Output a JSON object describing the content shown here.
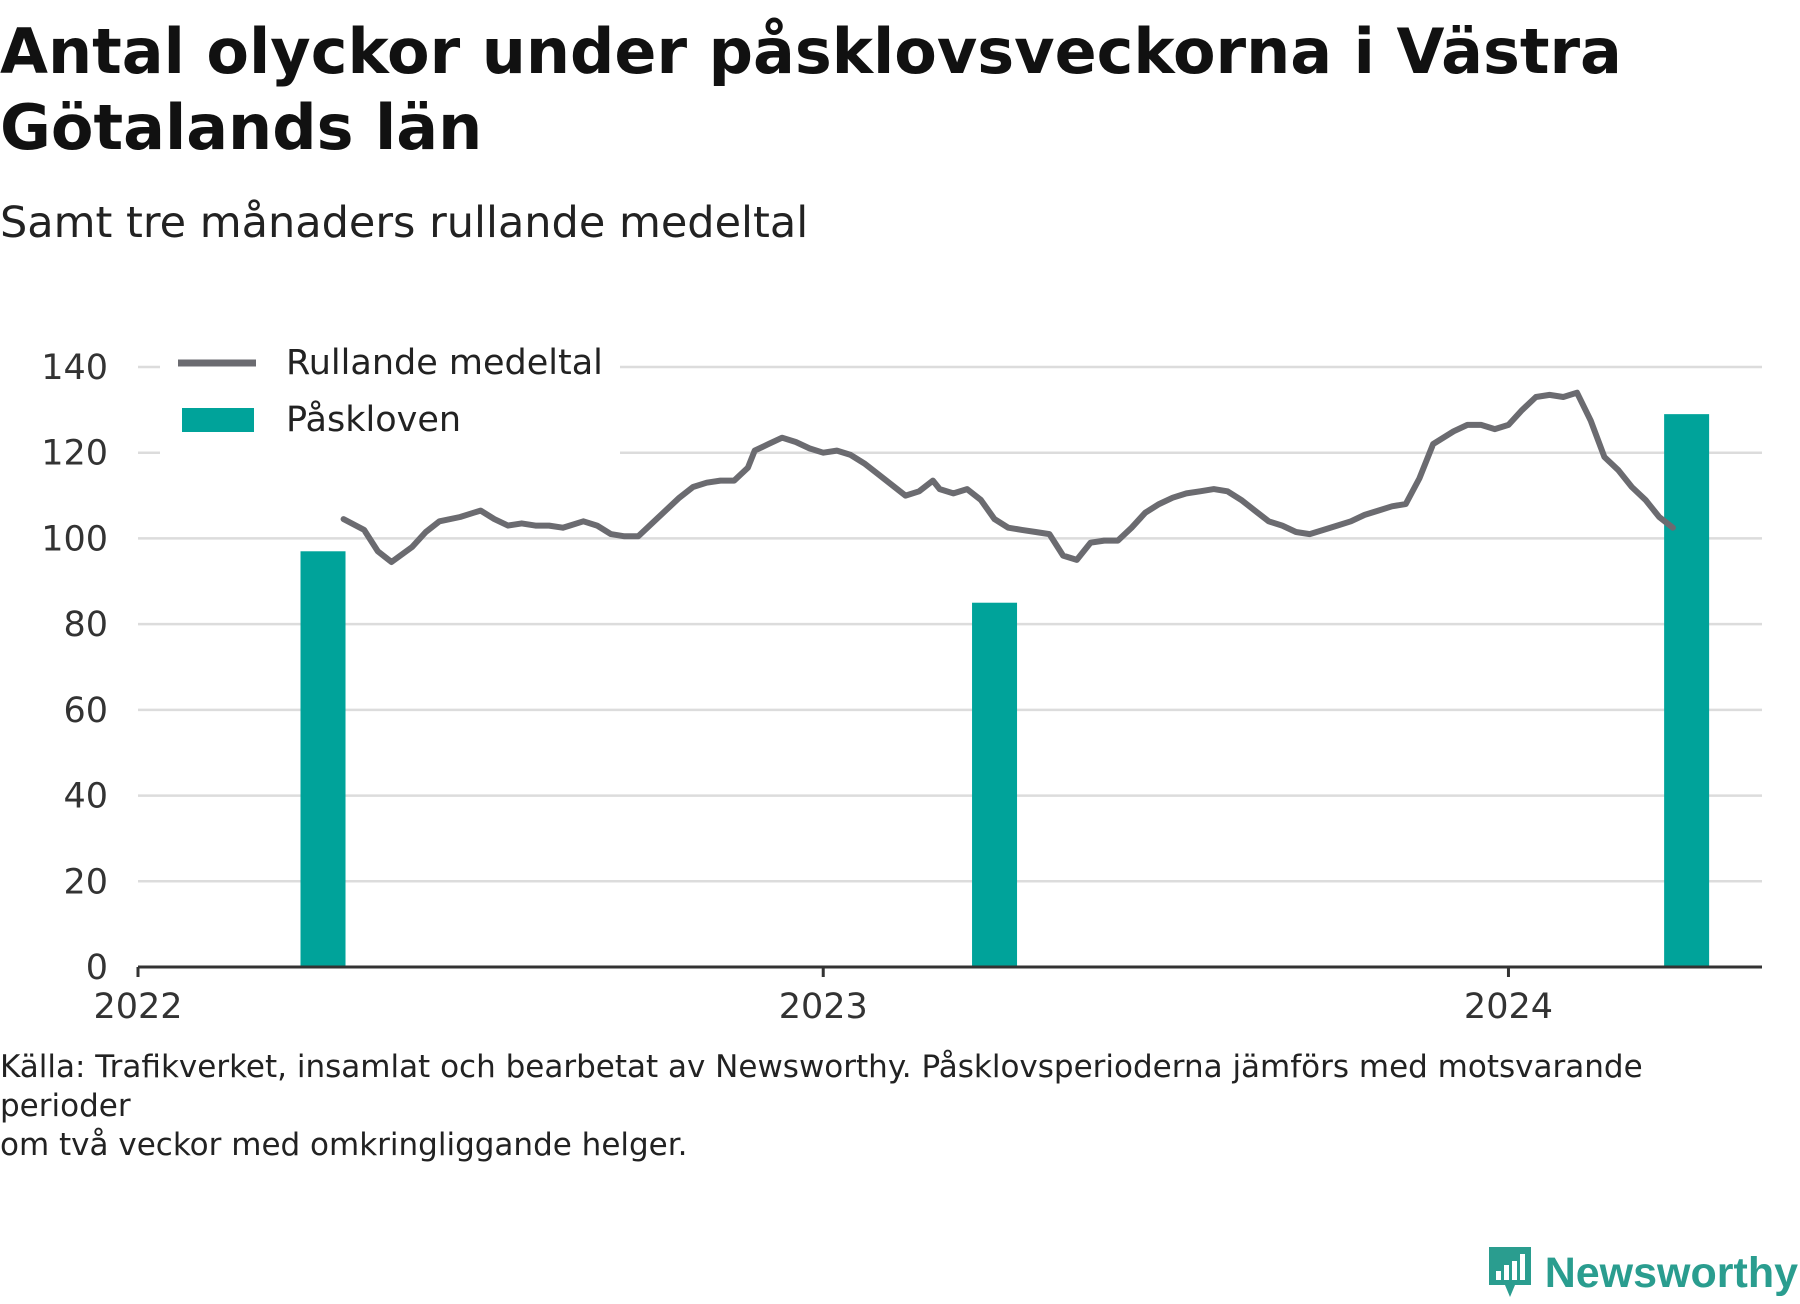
{
  "title": "Antal olyckor under påsklovsveckorna i Västra Götalands län",
  "subtitle": "Samt tre månaders rullande medeltal",
  "footnote_line1": "Källa: Trafikverket, insamlat och bearbetat av Newsworthy. Påsklovsperioderna jämförs med motsvarande perioder",
  "footnote_line2": "om två veckor med omkringliggande helger.",
  "brand": "Newsworthy",
  "colors": {
    "line": "#6b6b70",
    "bar": "#00a39a",
    "grid": "#dcdcdc",
    "axis": "#333333",
    "brand": "#2a9d8f"
  },
  "chart_data": {
    "type": "bar+line",
    "ylim": [
      0,
      140
    ],
    "yticks": [
      0,
      20,
      40,
      60,
      80,
      100,
      120,
      140
    ],
    "xlim": [
      2022.0,
      2024.37
    ],
    "xticks": [
      {
        "value": 2022,
        "label": "2022"
      },
      {
        "value": 2023,
        "label": "2023"
      },
      {
        "value": 2024,
        "label": "2024"
      }
    ],
    "grid": true,
    "legend": {
      "position": "top-left",
      "entries": [
        {
          "label": "Rullande medeltal",
          "kind": "line"
        },
        {
          "label": "Påskloven",
          "kind": "bar"
        }
      ]
    },
    "bars": {
      "name": "Påskloven",
      "points": [
        {
          "x": 2022.27,
          "y": 97
        },
        {
          "x": 2023.25,
          "y": 85
        },
        {
          "x": 2024.26,
          "y": 129
        }
      ]
    },
    "line": {
      "name": "Rullande medeltal",
      "points": [
        [
          2022.3,
          104.5
        ],
        [
          2022.33,
          102
        ],
        [
          2022.35,
          97
        ],
        [
          2022.37,
          94.5
        ],
        [
          2022.4,
          98
        ],
        [
          2022.42,
          101.5
        ],
        [
          2022.44,
          104
        ],
        [
          2022.47,
          105
        ],
        [
          2022.49,
          106
        ],
        [
          2022.5,
          106.5
        ],
        [
          2022.52,
          104.5
        ],
        [
          2022.54,
          103
        ],
        [
          2022.56,
          103.5
        ],
        [
          2022.58,
          103
        ],
        [
          2022.6,
          103
        ],
        [
          2022.62,
          102.5
        ],
        [
          2022.63,
          103
        ],
        [
          2022.65,
          104
        ],
        [
          2022.67,
          103
        ],
        [
          2022.69,
          101
        ],
        [
          2022.71,
          100.5
        ],
        [
          2022.73,
          100.5
        ],
        [
          2022.75,
          103.5
        ],
        [
          2022.77,
          106.5
        ],
        [
          2022.79,
          109.5
        ],
        [
          2022.81,
          112
        ],
        [
          2022.83,
          113
        ],
        [
          2022.85,
          113.5
        ],
        [
          2022.87,
          113.5
        ],
        [
          2022.89,
          116.5
        ],
        [
          2022.9,
          120.5
        ],
        [
          2022.92,
          122
        ],
        [
          2022.94,
          123.5
        ],
        [
          2022.96,
          122.5
        ],
        [
          2022.98,
          121
        ],
        [
          2023.0,
          120
        ],
        [
          2023.02,
          120.5
        ],
        [
          2023.04,
          119.5
        ],
        [
          2023.06,
          117.5
        ],
        [
          2023.08,
          115
        ],
        [
          2023.1,
          112.5
        ],
        [
          2023.12,
          110
        ],
        [
          2023.14,
          111
        ],
        [
          2023.16,
          113.5
        ],
        [
          2023.17,
          111.5
        ],
        [
          2023.19,
          110.5
        ],
        [
          2023.21,
          111.5
        ],
        [
          2023.23,
          109
        ],
        [
          2023.25,
          104.5
        ],
        [
          2023.27,
          102.5
        ],
        [
          2023.29,
          102
        ],
        [
          2023.31,
          101.5
        ],
        [
          2023.33,
          101
        ],
        [
          2023.35,
          96
        ],
        [
          2023.37,
          95
        ],
        [
          2023.39,
          99
        ],
        [
          2023.41,
          99.5
        ],
        [
          2023.43,
          99.5
        ],
        [
          2023.45,
          102.5
        ],
        [
          2023.47,
          106
        ],
        [
          2023.49,
          108
        ],
        [
          2023.51,
          109.5
        ],
        [
          2023.53,
          110.5
        ],
        [
          2023.55,
          111
        ],
        [
          2023.57,
          111.5
        ],
        [
          2023.59,
          111
        ],
        [
          2023.61,
          109
        ],
        [
          2023.63,
          106.5
        ],
        [
          2023.65,
          104
        ],
        [
          2023.67,
          103
        ],
        [
          2023.69,
          101.5
        ],
        [
          2023.71,
          101
        ],
        [
          2023.73,
          102
        ],
        [
          2023.75,
          103
        ],
        [
          2023.77,
          104
        ],
        [
          2023.79,
          105.5
        ],
        [
          2023.81,
          106.5
        ],
        [
          2023.83,
          107.5
        ],
        [
          2023.85,
          108
        ],
        [
          2023.87,
          114
        ],
        [
          2023.89,
          122
        ],
        [
          2023.92,
          125
        ],
        [
          2023.94,
          126.5
        ],
        [
          2023.96,
          126.5
        ],
        [
          2023.98,
          125.5
        ],
        [
          2024.0,
          126.5
        ],
        [
          2024.02,
          130
        ],
        [
          2024.04,
          133
        ],
        [
          2024.06,
          133.5
        ],
        [
          2024.08,
          133
        ],
        [
          2024.1,
          134
        ],
        [
          2024.12,
          127.5
        ],
        [
          2024.14,
          119
        ],
        [
          2024.16,
          116
        ],
        [
          2024.18,
          112
        ],
        [
          2024.2,
          109
        ],
        [
          2024.22,
          105
        ],
        [
          2024.24,
          102.5
        ]
      ]
    }
  }
}
